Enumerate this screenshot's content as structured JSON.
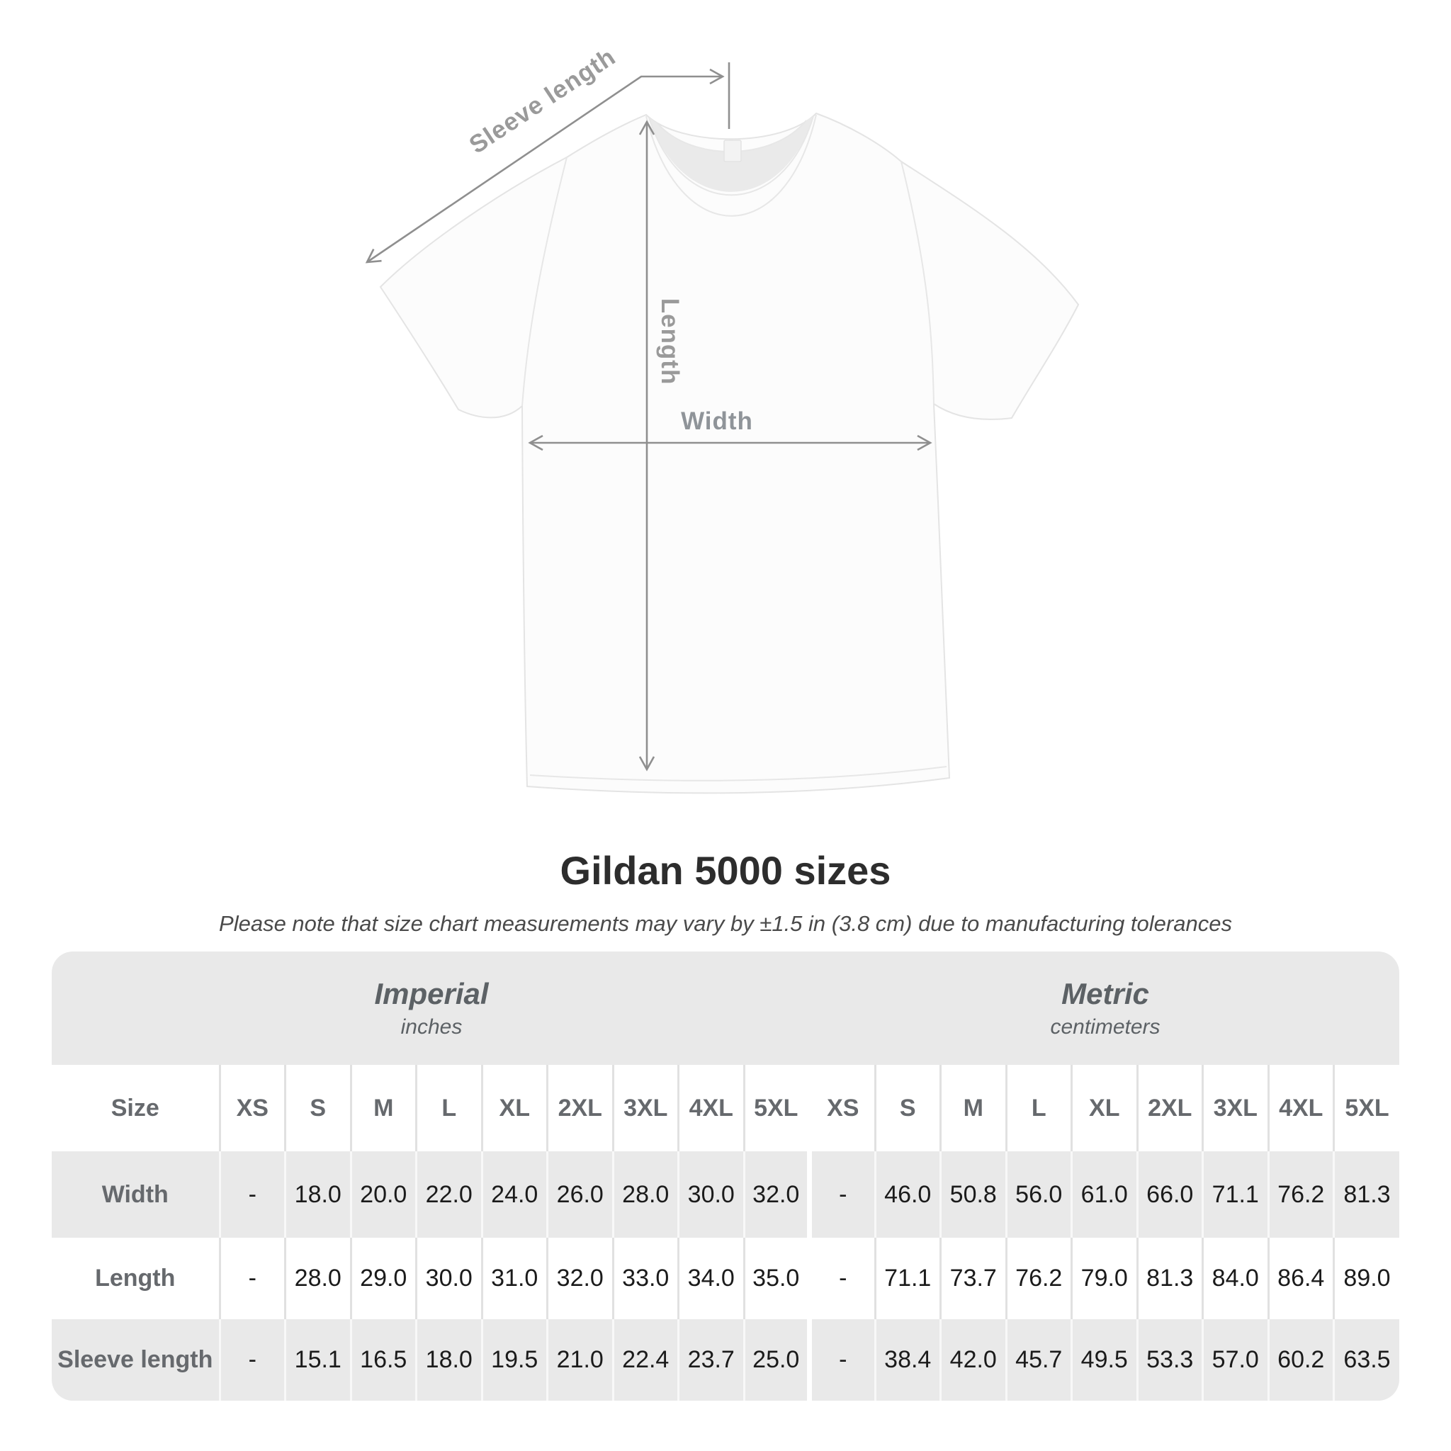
{
  "shirt_diagram": {
    "sleeve_length_label": "Sleeve length",
    "length_label": "Length",
    "width_label": "Width"
  },
  "title": "Gildan 5000 sizes",
  "subtitle": "Please note that size chart measurements may vary by ±1.5 in (3.8 cm) due to manufacturing tolerances",
  "size_table": {
    "sections": [
      {
        "title": "Imperial",
        "unit": "inches"
      },
      {
        "title": "Metric",
        "unit": "centimeters"
      }
    ],
    "size_column_header": "Size",
    "size_headers": [
      "XS",
      "S",
      "M",
      "L",
      "XL",
      "2XL",
      "3XL",
      "4XL",
      "5XL"
    ],
    "rows": [
      {
        "label": "Width",
        "imperial": [
          "-",
          "18.0",
          "20.0",
          "22.0",
          "24.0",
          "26.0",
          "28.0",
          "30.0",
          "32.0"
        ],
        "metric": [
          "-",
          "46.0",
          "50.8",
          "56.0",
          "61.0",
          "66.0",
          "71.1",
          "76.2",
          "81.3"
        ]
      },
      {
        "label": "Length",
        "imperial": [
          "-",
          "28.0",
          "29.0",
          "30.0",
          "31.0",
          "32.0",
          "33.0",
          "34.0",
          "35.0"
        ],
        "metric": [
          "-",
          "71.1",
          "73.7",
          "76.2",
          "79.0",
          "81.3",
          "84.0",
          "86.4",
          "89.0"
        ]
      },
      {
        "label": "Sleeve length",
        "imperial": [
          "-",
          "15.1",
          "16.5",
          "18.0",
          "19.5",
          "21.0",
          "22.4",
          "23.7",
          "25.0"
        ],
        "metric": [
          "-",
          "38.4",
          "42.0",
          "45.7",
          "49.5",
          "53.3",
          "57.0",
          "60.2",
          "63.5"
        ]
      }
    ]
  },
  "colors": {
    "annotation_line": "#8f8f8f",
    "annotation_text": "#9a9a9a",
    "table_band_gray": "#e9e9e9",
    "header_text": "#66696d",
    "value_text": "#1b1b1b",
    "title_text": "#2d2d2d"
  }
}
